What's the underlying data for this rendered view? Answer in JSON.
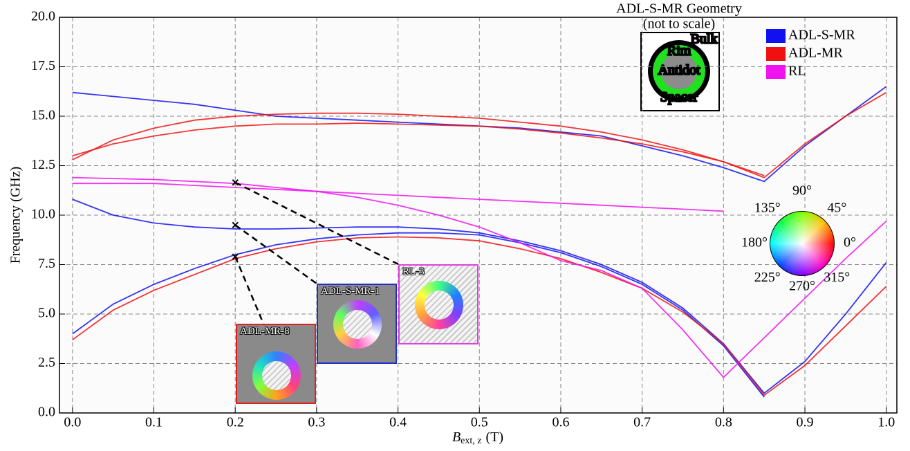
{
  "chart_data": {
    "type": "line",
    "ylabel": "Frequency (GHz)",
    "xlabel_symbol": "B",
    "xlabel_subscript": "ext, z",
    "xlabel_unit": "(T)",
    "xlim": [
      -0.016,
      1.013
    ],
    "ylim": [
      0,
      20
    ],
    "xticks": [
      {
        "value": 0,
        "label": "0.0"
      },
      0.1,
      0.2,
      0.3,
      0.4,
      0.5,
      0.6,
      0.7,
      0.8,
      0.9,
      {
        "value": 1,
        "label": "1.0"
      }
    ],
    "yticks": [
      {
        "value": 0,
        "label": "0.0"
      },
      2.5,
      {
        "value": 5,
        "label": "5.0"
      },
      7.5,
      {
        "value": 10,
        "label": "10.0"
      },
      12.5,
      {
        "value": 15,
        "label": "15.0"
      },
      17.5,
      {
        "value": 20,
        "label": "20.0"
      }
    ],
    "grid": true,
    "legend": "upper right",
    "x": [
      0,
      0.05,
      0.1,
      0.15,
      0.2,
      0.25,
      0.3,
      0.35,
      0.4,
      0.45,
      0.5,
      0.55,
      0.6,
      0.65,
      0.7,
      0.75,
      0.8,
      0.85,
      0.9,
      0.95,
      1
    ],
    "series": [
      {
        "name": "ADL-S-MR",
        "color": "#1010f0",
        "values": [
          [
            16.2,
            16.0,
            15.8,
            15.6,
            15.3,
            15.0,
            14.9,
            14.8,
            14.7,
            14.6,
            14.5,
            14.4,
            14.2,
            14.0,
            13.5,
            13.0,
            12.4,
            11.7,
            13.5,
            15.0,
            16.5
          ],
          [
            10.8,
            10.0,
            9.6,
            9.4,
            9.3,
            9.3,
            9.35,
            9.4,
            9.4,
            9.3,
            9.1,
            8.7,
            8.2,
            7.5,
            6.6,
            5.3,
            3.5,
            1.0,
            2.6,
            5.0,
            7.6
          ],
          [
            4.0,
            5.5,
            6.5,
            7.3,
            8.0,
            8.5,
            8.8,
            9.0,
            9.1,
            9.1,
            9.0,
            8.6,
            8.1,
            7.4,
            6.5,
            5.2,
            3.4,
            0.8,
            null,
            null,
            null
          ]
        ]
      },
      {
        "name": "ADL-MR",
        "color": "#f01010",
        "values": [
          [
            3.7,
            5.2,
            6.2,
            7.0,
            7.8,
            8.3,
            8.65,
            8.85,
            8.9,
            8.85,
            8.7,
            8.3,
            7.8,
            7.1,
            6.3,
            5.1,
            3.5,
            0.9,
            2.4,
            4.4,
            6.4
          ],
          [
            13.0,
            13.6,
            14.0,
            14.3,
            14.5,
            14.6,
            14.6,
            14.65,
            14.6,
            14.55,
            14.5,
            14.35,
            14.15,
            13.9,
            13.6,
            13.2,
            12.7,
            11.9,
            13.6,
            15.0,
            16.2
          ],
          [
            12.8,
            13.8,
            14.4,
            14.8,
            15.0,
            15.1,
            15.15,
            15.15,
            15.1,
            15.0,
            14.9,
            14.7,
            14.5,
            14.2,
            13.8,
            13.3,
            12.7,
            12.0,
            null,
            null,
            null
          ]
        ]
      },
      {
        "name": "RL",
        "color": "#f010f0",
        "values": [
          [
            11.9,
            11.85,
            11.8,
            11.7,
            11.6,
            11.4,
            11.2,
            10.9,
            10.5,
            10.0,
            9.4,
            8.6,
            7.7,
            7.2,
            6.3,
            4.2,
            1.8,
            3.8,
            5.8,
            7.8,
            9.7
          ],
          [
            11.6,
            11.6,
            11.6,
            11.5,
            11.4,
            11.3,
            11.2,
            11.1,
            11.0,
            10.9,
            10.8,
            10.7,
            10.6,
            10.5,
            10.4,
            10.3,
            10.2,
            null,
            null,
            null,
            null
          ]
        ]
      }
    ],
    "markers": [
      {
        "x": 0.2,
        "y": 7.9,
        "label": "ADL-MR-8",
        "color": "#e02020"
      },
      {
        "x": 0.2,
        "y": 9.5,
        "label": "ADL-S-MR-1",
        "color": "#2030d0"
      },
      {
        "x": 0.2,
        "y": 11.65,
        "label": "RL-3",
        "color": "#e040e0"
      }
    ],
    "geometry": {
      "title": "ADL-S-MR Geometry",
      "subtitle": "(not to scale)",
      "labels": [
        "Bulk",
        "Rim",
        "Antidot",
        "Spacer"
      ]
    },
    "color_wheel": {
      "labels": [
        "0°",
        "45°",
        "90°",
        "135°",
        "180°",
        "225°",
        "270°",
        "315°"
      ]
    }
  }
}
